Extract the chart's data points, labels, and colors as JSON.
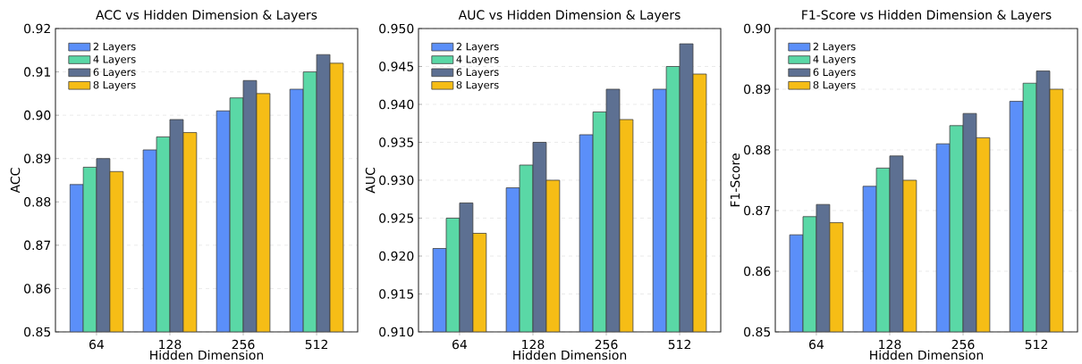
{
  "chart_data": [
    {
      "type": "bar",
      "title": "ACC vs Hidden Dimension & Layers",
      "xlabel": "Hidden Dimension",
      "ylabel": "ACC",
      "categories": [
        "64",
        "128",
        "256",
        "512"
      ],
      "series": [
        {
          "name": "2 Layers",
          "color": "#5b8ff9",
          "values": [
            0.884,
            0.892,
            0.901,
            0.906
          ]
        },
        {
          "name": "4 Layers",
          "color": "#5ad8a6",
          "values": [
            0.888,
            0.895,
            0.904,
            0.91
          ]
        },
        {
          "name": "6 Layers",
          "color": "#5d7092",
          "values": [
            0.89,
            0.899,
            0.908,
            0.914
          ]
        },
        {
          "name": "8 Layers",
          "color": "#f6bd16",
          "values": [
            0.887,
            0.896,
            0.905,
            0.912
          ]
        }
      ],
      "ylim": [
        0.85,
        0.92
      ],
      "yticks": [
        {
          "value": 0.85,
          "label": "0.85"
        },
        {
          "value": 0.86,
          "label": "0.86"
        },
        {
          "value": 0.87,
          "label": "0.87"
        },
        {
          "value": 0.88,
          "label": "0.88"
        },
        {
          "value": 0.89,
          "label": "0.89"
        },
        {
          "value": 0.9,
          "label": "0.90"
        },
        {
          "value": 0.91,
          "label": "0.91"
        },
        {
          "value": 0.92,
          "label": "0.92"
        }
      ],
      "grid": "y",
      "legend": "top left"
    },
    {
      "type": "bar",
      "title": "AUC vs Hidden Dimension & Layers",
      "xlabel": "Hidden Dimension",
      "ylabel": "AUC",
      "categories": [
        "64",
        "128",
        "256",
        "512"
      ],
      "series": [
        {
          "name": "2 Layers",
          "color": "#5b8ff9",
          "values": [
            0.921,
            0.929,
            0.936,
            0.942
          ]
        },
        {
          "name": "4 Layers",
          "color": "#5ad8a6",
          "values": [
            0.925,
            0.932,
            0.939,
            0.945
          ]
        },
        {
          "name": "6 Layers",
          "color": "#5d7092",
          "values": [
            0.927,
            0.935,
            0.942,
            0.948
          ]
        },
        {
          "name": "8 Layers",
          "color": "#f6bd16",
          "values": [
            0.923,
            0.93,
            0.938,
            0.944
          ]
        }
      ],
      "ylim": [
        0.91,
        0.95
      ],
      "yticks": [
        {
          "value": 0.91,
          "label": "0.910"
        },
        {
          "value": 0.915,
          "label": "0.915"
        },
        {
          "value": 0.92,
          "label": "0.920"
        },
        {
          "value": 0.925,
          "label": "0.925"
        },
        {
          "value": 0.93,
          "label": "0.930"
        },
        {
          "value": 0.935,
          "label": "0.935"
        },
        {
          "value": 0.94,
          "label": "0.940"
        },
        {
          "value": 0.945,
          "label": "0.945"
        },
        {
          "value": 0.95,
          "label": "0.950"
        }
      ],
      "grid": "y",
      "legend": "top left"
    },
    {
      "type": "bar",
      "title": "F1-Score vs Hidden Dimension & Layers",
      "xlabel": "Hidden Dimension",
      "ylabel": "F1-Score",
      "categories": [
        "64",
        "128",
        "256",
        "512"
      ],
      "series": [
        {
          "name": "2 Layers",
          "color": "#5b8ff9",
          "values": [
            0.866,
            0.874,
            0.881,
            0.888
          ]
        },
        {
          "name": "4 Layers",
          "color": "#5ad8a6",
          "values": [
            0.869,
            0.877,
            0.884,
            0.891
          ]
        },
        {
          "name": "6 Layers",
          "color": "#5d7092",
          "values": [
            0.871,
            0.879,
            0.886,
            0.893
          ]
        },
        {
          "name": "8 Layers",
          "color": "#f6bd16",
          "values": [
            0.868,
            0.875,
            0.882,
            0.89
          ]
        }
      ],
      "ylim": [
        0.85,
        0.9
      ],
      "yticks": [
        {
          "value": 0.85,
          "label": "0.85"
        },
        {
          "value": 0.86,
          "label": "0.86"
        },
        {
          "value": 0.87,
          "label": "0.87"
        },
        {
          "value": 0.88,
          "label": "0.88"
        },
        {
          "value": 0.89,
          "label": "0.89"
        },
        {
          "value": 0.9,
          "label": "0.90"
        }
      ],
      "grid": "y",
      "legend": "top left"
    }
  ]
}
